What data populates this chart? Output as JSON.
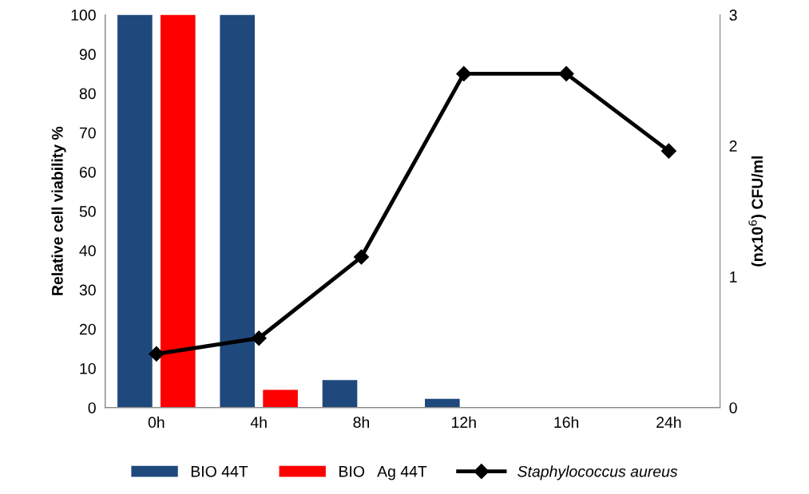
{
  "chart_data": {
    "type": "bar",
    "categories": [
      "0h",
      "4h",
      "8h",
      "12h",
      "16h",
      "24h"
    ],
    "series": [
      {
        "name": "BIO 44T",
        "color": "#1f497d",
        "values": [
          100,
          100,
          7,
          2.2,
          0,
          0
        ]
      },
      {
        "name": "BIO   Ag 44T",
        "color": "#ff0000",
        "values": [
          100,
          4.5,
          0,
          0,
          0,
          0
        ]
      },
      {
        "name": "Staphylococcus aureus",
        "type": "line",
        "axis": "y2",
        "color": "#000000",
        "marker": "diamond",
        "values": [
          0.41,
          0.53,
          1.15,
          2.55,
          2.55,
          1.96
        ]
      }
    ],
    "ylabel": "Relative cell viability %",
    "y2label": "(nx10$^{6}$) CFU/ml",
    "ylim": [
      0,
      100
    ],
    "yticks": [
      0,
      10,
      20,
      30,
      40,
      50,
      60,
      70,
      80,
      90,
      100
    ],
    "y2lim": [
      0,
      3
    ],
    "y2ticks": [
      0,
      1,
      2,
      3
    ],
    "grid": false,
    "legend": "bottom"
  }
}
